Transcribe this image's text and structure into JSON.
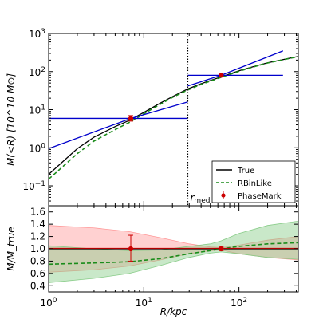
{
  "chart_data": [
    {
      "type": "line",
      "panel": "top",
      "xscale": "log",
      "yscale": "log",
      "xlim": [
        1,
        420
      ],
      "ylim": [
        0.03,
        1000
      ],
      "ylabel": "M(<R) [10^10 M⊙]",
      "yticks": [
        {
          "value": 0.1,
          "base": "10",
          "exp": "−1"
        },
        {
          "value": 1,
          "base": "10",
          "exp": "0"
        },
        {
          "value": 10,
          "base": "10",
          "exp": "1"
        },
        {
          "value": 100,
          "base": "10",
          "exp": "2"
        },
        {
          "value": 1000,
          "base": "10",
          "exp": "3"
        }
      ],
      "vline": {
        "x": 29,
        "label_main": "r",
        "label_sub": "med"
      },
      "series": [
        {
          "name": "True",
          "color": "#000000",
          "style": "solid",
          "x": [
            1,
            2,
            3,
            5,
            7,
            10,
            15,
            20,
            29,
            40,
            60,
            100,
            150,
            200,
            300,
            420
          ],
          "y": [
            0.2,
            0.95,
            1.9,
            3.6,
            5.2,
            8.5,
            15,
            22,
            35,
            48,
            68,
            105,
            140,
            170,
            210,
            250
          ]
        },
        {
          "name": "RBinLike",
          "color": "#1a8c1a",
          "style": "dashed",
          "x": [
            1,
            2,
            3,
            5,
            7,
            10,
            15,
            20,
            29,
            40,
            60,
            100,
            150,
            200,
            300,
            420
          ],
          "y": [
            0.15,
            0.7,
            1.5,
            3.0,
            4.6,
            7.8,
            14,
            21,
            33,
            46,
            66,
            102,
            138,
            168,
            208,
            248
          ]
        },
        {
          "name": "blue-fit-inner",
          "color": "#0000cc",
          "style": "solid",
          "x": [
            1,
            7.3,
            29
          ],
          "y": [
            0.95,
            5.9,
            16
          ]
        },
        {
          "name": "blue-fit-outer",
          "color": "#0000cc",
          "style": "solid",
          "x": [
            29,
            65,
            290
          ],
          "y": [
            42,
            80,
            350
          ]
        },
        {
          "name": "blue-range-inner",
          "color": "#0000cc",
          "style": "solid",
          "x": [
            1,
            29
          ],
          "y": [
            5.9,
            5.9
          ]
        },
        {
          "name": "blue-range-outer",
          "color": "#0000cc",
          "style": "solid",
          "x": [
            29,
            290
          ],
          "y": [
            80,
            80
          ]
        }
      ],
      "points": [
        {
          "name": "PhaseMark",
          "color": "#cc0000",
          "x": 7.3,
          "y": 5.9,
          "yerr": [
            5.0,
            7.0
          ]
        },
        {
          "name": "PhaseMark",
          "color": "#cc0000",
          "x": 65,
          "y": 80,
          "yerr": [
            76,
            84
          ]
        }
      ],
      "legend": {
        "position": "bottom-right",
        "entries": [
          {
            "label": "True",
            "color": "#000000",
            "style": "solid"
          },
          {
            "label": "RBinLike",
            "color": "#1a8c1a",
            "style": "dashed"
          },
          {
            "label": "PhaseMark",
            "color": "#cc0000",
            "style": "marker"
          }
        ]
      }
    },
    {
      "type": "area",
      "panel": "bottom",
      "xscale": "log",
      "xlim": [
        1,
        420
      ],
      "ylim": [
        0.3,
        1.7
      ],
      "xlabel": "R/kpc",
      "ylabel": "M/M_true",
      "xticks": [
        {
          "value": 1,
          "base": "10",
          "exp": "0"
        },
        {
          "value": 10,
          "base": "10",
          "exp": "1"
        },
        {
          "value": 100,
          "base": "10",
          "exp": "2"
        }
      ],
      "yticks": [
        "0.4",
        "0.6",
        "0.8",
        "1.0",
        "1.2",
        "1.4",
        "1.6"
      ],
      "bands": [
        {
          "name": "PhaseMark-band",
          "color": "#ff9999",
          "x": [
            1,
            3,
            7,
            15,
            30,
            50,
            65,
            100,
            200,
            420
          ],
          "lower": [
            0.62,
            0.66,
            0.72,
            0.82,
            0.92,
            0.97,
            0.98,
            0.92,
            0.86,
            0.82
          ],
          "upper": [
            1.38,
            1.34,
            1.28,
            1.18,
            1.08,
            1.03,
            1.02,
            1.06,
            1.14,
            1.2
          ]
        },
        {
          "name": "RBinLike-band",
          "color": "#88cc88",
          "x": [
            1,
            3,
            7,
            15,
            30,
            50,
            65,
            100,
            200,
            420
          ],
          "lower": [
            0.45,
            0.52,
            0.6,
            0.73,
            0.86,
            0.93,
            0.95,
            0.92,
            0.86,
            0.83
          ],
          "upper": [
            1.05,
            1.0,
            0.97,
            0.98,
            1.04,
            1.08,
            1.13,
            1.25,
            1.38,
            1.45
          ]
        }
      ],
      "series": [
        {
          "name": "True",
          "color": "#000000",
          "style": "solid",
          "x": [
            1,
            420
          ],
          "y": [
            1.0,
            1.0
          ]
        },
        {
          "name": "RBinLike",
          "color": "#1a8c1a",
          "style": "dashed",
          "x": [
            1,
            3,
            7,
            15,
            30,
            50,
            65,
            100,
            200,
            420
          ],
          "y": [
            0.75,
            0.77,
            0.79,
            0.84,
            0.92,
            0.97,
            1.0,
            1.04,
            1.08,
            1.1
          ]
        }
      ],
      "points": [
        {
          "name": "PhaseMark",
          "color": "#cc0000",
          "x": 7.3,
          "y": 1.0,
          "yerr": [
            0.8,
            1.22
          ]
        },
        {
          "name": "PhaseMark",
          "color": "#cc0000",
          "x": 65,
          "y": 1.0,
          "yerr": [
            0.97,
            1.03
          ]
        }
      ]
    }
  ]
}
